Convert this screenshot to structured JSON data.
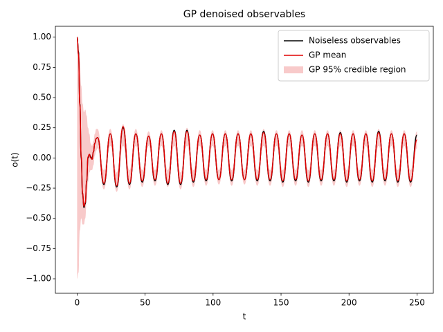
{
  "chart_data": {
    "type": "line",
    "title": "GP denoised observables",
    "xlabel": "t",
    "ylabel": "o(t)",
    "xlim": [
      -16,
      262
    ],
    "ylim": [
      -1.12,
      1.09
    ],
    "xticks": [
      0,
      50,
      100,
      150,
      200,
      250
    ],
    "yticks": [
      {
        "value": -1,
        "label": "−1.00"
      },
      {
        "value": -0.75,
        "label": "−0.75"
      },
      {
        "value": -0.5,
        "label": "−0.50"
      },
      {
        "value": -0.25,
        "label": "−0.25"
      },
      {
        "value": 0,
        "label": "0.00"
      },
      {
        "value": 0.25,
        "label": "0.25"
      },
      {
        "value": 0.5,
        "label": "0.50"
      },
      {
        "value": 0.75,
        "label": "0.75"
      },
      {
        "value": 1,
        "label": "1.00"
      }
    ],
    "legend": "upper right",
    "x": [
      0,
      1,
      2,
      3,
      4,
      5,
      6,
      7,
      8,
      9,
      10,
      11,
      12,
      13,
      14,
      15,
      19.7,
      24.4,
      29.1,
      33.8,
      38.5,
      43.2,
      47.9,
      52.6,
      57.3,
      62,
      66.7,
      71.4,
      76.1,
      80.8,
      85.5,
      90.2,
      94.9,
      99.6,
      104.3,
      109,
      113.7,
      118.4,
      123.1,
      127.8,
      132.5,
      137.2,
      141.9,
      146.6,
      151.3,
      156,
      160.7,
      165.4,
      170.1,
      174.8,
      179.5,
      184.2,
      188.9,
      193.6,
      198.3,
      203,
      207.7,
      212.4,
      217.1,
      221.8,
      226.5,
      231.2,
      235.9,
      240.6,
      245.3,
      250
    ],
    "band": {
      "name": "GP 95% credible region",
      "color": "#f4a6a6",
      "upper": [
        1.0,
        0.95,
        0.8,
        0.6,
        0.45,
        0.38,
        0.4,
        0.35,
        0.25,
        0.2,
        0.12,
        0.1,
        0.14,
        0.2,
        0.24,
        0.24,
        -0.1,
        0.24,
        -0.12,
        0.28,
        -0.1,
        0.24,
        -0.1,
        0.22,
        -0.1,
        0.23,
        -0.1,
        0.23,
        -0.12,
        0.25,
        -0.1,
        0.23,
        -0.1,
        0.23,
        -0.1,
        0.23,
        -0.1,
        0.23,
        -0.1,
        0.23,
        -0.1,
        0.24,
        -0.1,
        0.23,
        -0.1,
        0.23,
        -0.1,
        0.23,
        -0.1,
        0.23,
        -0.1,
        0.23,
        -0.1,
        0.23,
        -0.1,
        0.23,
        -0.1,
        0.23,
        -0.1,
        0.24,
        -0.1,
        0.23,
        -0.1,
        0.23,
        -0.1,
        0.22
      ],
      "lower": [
        -1.0,
        -0.95,
        -0.6,
        -0.5,
        -0.55,
        -0.55,
        -0.5,
        -0.35,
        -0.2,
        -0.12,
        -0.1,
        -0.1,
        -0.06,
        0.02,
        0.06,
        0.08,
        -0.26,
        0.1,
        -0.28,
        0.1,
        -0.26,
        0.1,
        -0.24,
        0.1,
        -0.23,
        0.1,
        -0.24,
        0.1,
        -0.26,
        0.1,
        -0.24,
        0.1,
        -0.23,
        0.1,
        -0.22,
        0.1,
        -0.23,
        0.1,
        -0.22,
        0.1,
        -0.23,
        0.1,
        -0.23,
        0.1,
        -0.24,
        0.1,
        -0.23,
        0.1,
        -0.24,
        0.1,
        -0.23,
        0.1,
        -0.23,
        0.1,
        -0.24,
        0.1,
        -0.23,
        0.1,
        -0.24,
        0.1,
        -0.23,
        0.1,
        -0.24,
        0.1,
        -0.24,
        0.08
      ]
    },
    "series": [
      {
        "name": "Noiseless observables",
        "color": "#000000",
        "values": [
          1.0,
          0.88,
          0.45,
          0.0,
          -0.3,
          -0.41,
          -0.38,
          -0.2,
          0.0,
          0.03,
          0.01,
          -0.01,
          0.05,
          0.12,
          0.16,
          0.17,
          -0.22,
          0.2,
          -0.24,
          0.25,
          -0.22,
          0.2,
          -0.2,
          0.18,
          -0.19,
          0.2,
          -0.22,
          0.23,
          -0.22,
          0.23,
          -0.2,
          0.19,
          -0.19,
          0.2,
          -0.18,
          0.2,
          -0.19,
          0.2,
          -0.18,
          0.2,
          -0.19,
          0.22,
          -0.19,
          0.2,
          -0.2,
          0.2,
          -0.19,
          0.19,
          -0.2,
          0.2,
          -0.19,
          0.2,
          -0.19,
          0.21,
          -0.2,
          0.2,
          -0.19,
          0.2,
          -0.2,
          0.22,
          -0.19,
          0.2,
          -0.2,
          0.2,
          -0.2,
          0.19
        ]
      },
      {
        "name": "GP mean",
        "color": "#e00000",
        "values": [
          1.0,
          0.86,
          0.44,
          0.01,
          -0.29,
          -0.4,
          -0.37,
          -0.19,
          0.01,
          0.03,
          0.0,
          -0.01,
          0.05,
          0.12,
          0.16,
          0.17,
          -0.21,
          0.2,
          -0.23,
          0.26,
          -0.21,
          0.2,
          -0.19,
          0.18,
          -0.18,
          0.2,
          -0.21,
          0.22,
          -0.21,
          0.22,
          -0.19,
          0.19,
          -0.18,
          0.2,
          -0.18,
          0.2,
          -0.18,
          0.2,
          -0.18,
          0.2,
          -0.18,
          0.21,
          -0.18,
          0.2,
          -0.19,
          0.2,
          -0.18,
          0.19,
          -0.19,
          0.2,
          -0.18,
          0.2,
          -0.18,
          0.2,
          -0.19,
          0.2,
          -0.18,
          0.2,
          -0.19,
          0.21,
          -0.18,
          0.2,
          -0.19,
          0.2,
          -0.19,
          0.15
        ]
      }
    ]
  }
}
